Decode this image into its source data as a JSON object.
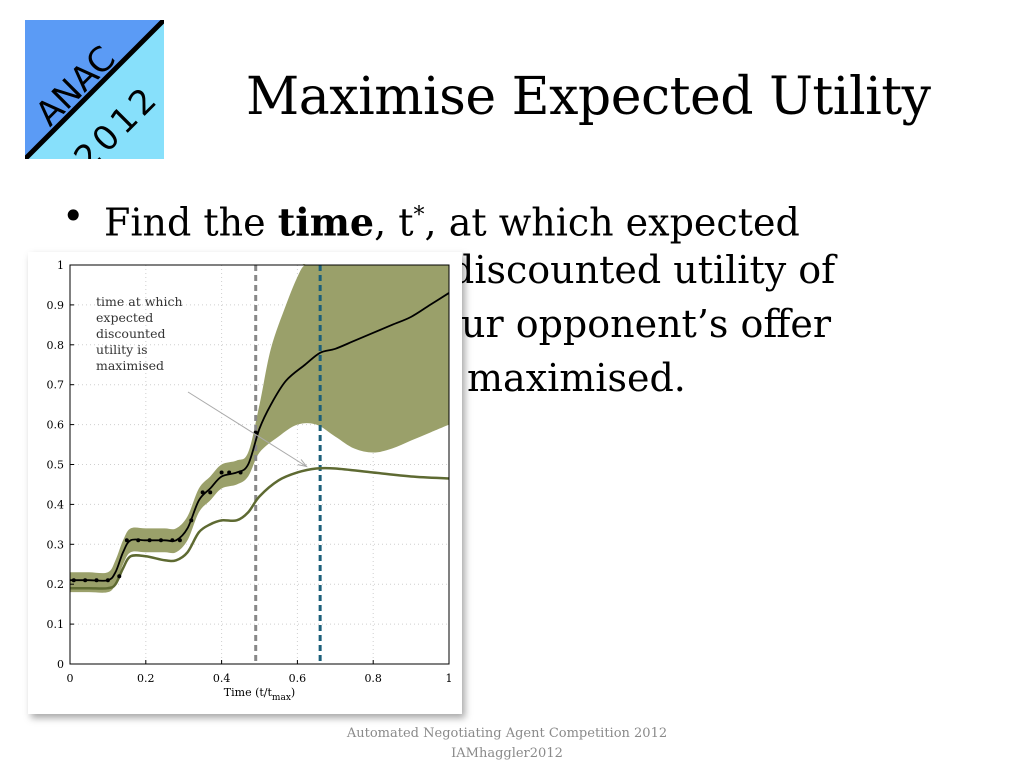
{
  "logo": {
    "line1": "ANAC",
    "line2": "2012",
    "bg_left": "#5b9bf5",
    "bg_right": "#87e0fb"
  },
  "title": "Maximise Expected Utility",
  "bullet": {
    "marker": "•",
    "text_before": "Find the ",
    "bold_word": "time",
    "text_mid": ", t",
    "superscript": "*",
    "text_after": ", at which expected",
    "line2": "discounted utility of",
    "line3": "ur opponent’s offer",
    "line4": "maximised."
  },
  "chart_data": {
    "type": "line",
    "xlabel": "Time (t/t",
    "xlabel_sub": "max",
    "xlabel_end": ")",
    "xlim": [
      0,
      1
    ],
    "ylim": [
      0,
      1
    ],
    "x_ticks": [
      "0",
      "0.2",
      "0.4",
      "0.6",
      "0.8",
      "1"
    ],
    "y_ticks": [
      "0",
      "0.1",
      "0.2",
      "0.3",
      "0.4",
      "0.5",
      "0.6",
      "0.7",
      "0.8",
      "0.9",
      "1"
    ],
    "grid": true,
    "annotation": {
      "lines": [
        "time at which",
        "expected",
        "discounted",
        "utility is",
        "maximised"
      ],
      "arrow_to": [
        0.64,
        0.5
      ]
    },
    "vlines": [
      {
        "x": 0.49,
        "color": "#888888"
      },
      {
        "x": 0.66,
        "color": "#1b5f7a"
      }
    ],
    "colors": {
      "band": "#9aa06a",
      "mean": "#000000",
      "discounted": "#5e6a32",
      "dots": "#000000"
    },
    "observations": {
      "x": [
        0.01,
        0.04,
        0.07,
        0.1,
        0.13,
        0.15,
        0.18,
        0.21,
        0.24,
        0.27,
        0.29,
        0.32,
        0.35,
        0.37,
        0.4,
        0.42,
        0.45,
        0.49
      ],
      "y": [
        0.21,
        0.21,
        0.21,
        0.21,
        0.22,
        0.31,
        0.31,
        0.31,
        0.31,
        0.31,
        0.31,
        0.36,
        0.43,
        0.43,
        0.48,
        0.48,
        0.48,
        0.58
      ]
    },
    "mean": {
      "x": [
        0,
        0.05,
        0.1,
        0.12,
        0.14,
        0.16,
        0.2,
        0.25,
        0.28,
        0.31,
        0.34,
        0.37,
        0.4,
        0.44,
        0.47,
        0.5,
        0.53,
        0.57,
        0.62,
        0.66,
        0.7,
        0.75,
        0.8,
        0.85,
        0.9,
        0.95,
        1.0
      ],
      "y": [
        0.21,
        0.21,
        0.21,
        0.23,
        0.28,
        0.31,
        0.31,
        0.31,
        0.31,
        0.34,
        0.41,
        0.44,
        0.47,
        0.48,
        0.5,
        0.59,
        0.65,
        0.71,
        0.75,
        0.78,
        0.79,
        0.81,
        0.83,
        0.85,
        0.87,
        0.9,
        0.93
      ]
    },
    "band_upper": {
      "x": [
        0,
        0.05,
        0.1,
        0.12,
        0.14,
        0.16,
        0.2,
        0.25,
        0.28,
        0.31,
        0.34,
        0.37,
        0.4,
        0.44,
        0.47,
        0.5,
        0.53,
        0.57,
        0.6,
        0.62,
        0.65,
        1.0
      ],
      "y": [
        0.23,
        0.23,
        0.23,
        0.26,
        0.31,
        0.34,
        0.34,
        0.34,
        0.34,
        0.37,
        0.44,
        0.47,
        0.5,
        0.51,
        0.53,
        0.65,
        0.79,
        0.9,
        0.97,
        1.0,
        1.0,
        1.0
      ]
    },
    "band_lower": {
      "x": [
        0,
        0.05,
        0.1,
        0.12,
        0.14,
        0.16,
        0.2,
        0.25,
        0.28,
        0.31,
        0.34,
        0.37,
        0.4,
        0.44,
        0.47,
        0.5,
        0.55,
        0.6,
        0.65,
        0.7,
        0.75,
        0.8,
        0.85,
        0.9,
        0.95,
        1.0
      ],
      "y": [
        0.18,
        0.18,
        0.18,
        0.2,
        0.25,
        0.28,
        0.28,
        0.28,
        0.28,
        0.31,
        0.38,
        0.41,
        0.44,
        0.45,
        0.47,
        0.53,
        0.57,
        0.6,
        0.6,
        0.57,
        0.54,
        0.53,
        0.54,
        0.56,
        0.58,
        0.6
      ]
    },
    "discounted": {
      "x": [
        0,
        0.05,
        0.1,
        0.12,
        0.14,
        0.16,
        0.2,
        0.25,
        0.28,
        0.31,
        0.34,
        0.37,
        0.4,
        0.44,
        0.47,
        0.5,
        0.55,
        0.6,
        0.65,
        0.7,
        0.8,
        0.9,
        1.0
      ],
      "y": [
        0.19,
        0.19,
        0.19,
        0.2,
        0.24,
        0.27,
        0.27,
        0.26,
        0.26,
        0.28,
        0.33,
        0.35,
        0.36,
        0.36,
        0.38,
        0.42,
        0.46,
        0.48,
        0.49,
        0.49,
        0.48,
        0.47,
        0.465
      ]
    }
  },
  "footer": {
    "line1": "Automated Negotiating Agent Competition 2012",
    "line2": "IAMhaggler2012"
  }
}
